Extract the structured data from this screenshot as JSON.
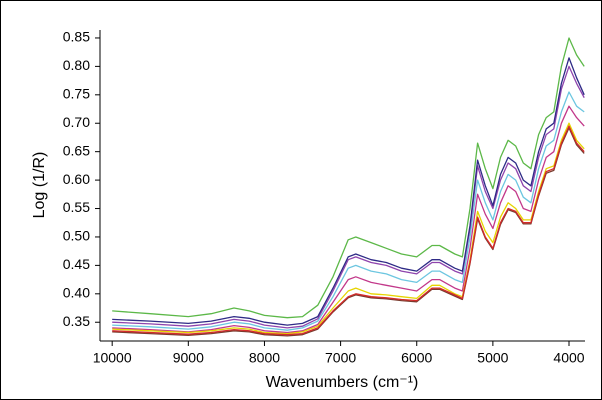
{
  "chart_data": {
    "type": "line",
    "y_label": "Log (1/R)",
    "x_label": "Wavenumbers (cm⁻¹)",
    "x": [
      10000,
      9500,
      9000,
      8700,
      8400,
      8200,
      8000,
      7700,
      7500,
      7300,
      7100,
      6900,
      6800,
      6600,
      6400,
      6200,
      6000,
      5800,
      5700,
      5500,
      5400,
      5300,
      5200,
      5100,
      5000,
      4900,
      4800,
      4700,
      4600,
      4500,
      4400,
      4300,
      4200,
      4100,
      4000,
      3900,
      3800
    ],
    "xlim": [
      10160,
      3790
    ],
    "xticks": [
      10000,
      9000,
      8000,
      7000,
      6000,
      5000,
      4000
    ],
    "ylim": [
      0.317,
      0.864
    ],
    "yticks": [
      0.35,
      {
        "value": 0.4,
        "label": "0.40"
      },
      0.45,
      {
        "value": 0.5,
        "label": "0.50"
      },
      0.55,
      {
        "value": 0.6,
        "label": "0.60"
      },
      0.65,
      {
        "value": 0.7,
        "label": "0.70"
      },
      0.75,
      {
        "value": 0.8,
        "label": "0.80"
      },
      0.85
    ],
    "grid": false,
    "series": [
      {
        "color": "#5cb848",
        "values": [
          0.37,
          0.365,
          0.36,
          0.365,
          0.375,
          0.37,
          0.362,
          0.358,
          0.36,
          0.38,
          0.43,
          0.495,
          0.5,
          0.49,
          0.48,
          0.47,
          0.465,
          0.485,
          0.485,
          0.47,
          0.465,
          0.55,
          0.665,
          0.62,
          0.585,
          0.64,
          0.67,
          0.66,
          0.63,
          0.62,
          0.68,
          0.71,
          0.72,
          0.8,
          0.85,
          0.82,
          0.8
        ]
      },
      {
        "color": "#6cc6e0",
        "values": [
          0.345,
          0.342,
          0.338,
          0.342,
          0.35,
          0.347,
          0.34,
          0.336,
          0.34,
          0.352,
          0.395,
          0.445,
          0.45,
          0.44,
          0.435,
          0.425,
          0.42,
          0.44,
          0.44,
          0.425,
          0.42,
          0.5,
          0.6,
          0.56,
          0.53,
          0.58,
          0.61,
          0.6,
          0.57,
          0.56,
          0.62,
          0.66,
          0.67,
          0.72,
          0.755,
          0.73,
          0.72
        ]
      },
      {
        "color": "#c2388a",
        "values": [
          0.34,
          0.337,
          0.333,
          0.337,
          0.344,
          0.341,
          0.335,
          0.332,
          0.335,
          0.346,
          0.385,
          0.425,
          0.43,
          0.42,
          0.415,
          0.41,
          0.405,
          0.425,
          0.425,
          0.41,
          0.405,
          0.48,
          0.575,
          0.54,
          0.515,
          0.56,
          0.59,
          0.58,
          0.55,
          0.545,
          0.6,
          0.64,
          0.65,
          0.7,
          0.73,
          0.71,
          0.695
        ]
      },
      {
        "color": "#8e44ad",
        "values": [
          0.35,
          0.347,
          0.343,
          0.347,
          0.355,
          0.352,
          0.345,
          0.34,
          0.343,
          0.356,
          0.405,
          0.46,
          0.465,
          0.455,
          0.45,
          0.44,
          0.435,
          0.455,
          0.455,
          0.44,
          0.435,
          0.515,
          0.625,
          0.58,
          0.55,
          0.6,
          0.63,
          0.62,
          0.59,
          0.58,
          0.64,
          0.68,
          0.69,
          0.76,
          0.8,
          0.77,
          0.745
        ]
      },
      {
        "color": "#2e2a86",
        "values": [
          0.355,
          0.352,
          0.348,
          0.352,
          0.36,
          0.357,
          0.35,
          0.345,
          0.348,
          0.36,
          0.41,
          0.465,
          0.47,
          0.46,
          0.455,
          0.445,
          0.44,
          0.46,
          0.46,
          0.445,
          0.44,
          0.52,
          0.635,
          0.59,
          0.555,
          0.61,
          0.64,
          0.63,
          0.6,
          0.59,
          0.65,
          0.69,
          0.7,
          0.77,
          0.815,
          0.78,
          0.75
        ]
      },
      {
        "color": "#e6d400",
        "values": [
          0.338,
          0.335,
          0.332,
          0.335,
          0.34,
          0.338,
          0.332,
          0.33,
          0.333,
          0.343,
          0.375,
          0.405,
          0.41,
          0.4,
          0.398,
          0.395,
          0.392,
          0.415,
          0.415,
          0.4,
          0.395,
          0.46,
          0.545,
          0.51,
          0.49,
          0.535,
          0.56,
          0.55,
          0.53,
          0.53,
          0.58,
          0.62,
          0.625,
          0.67,
          0.7,
          0.67,
          0.655
        ]
      },
      {
        "color": "#7a3b2e",
        "values": [
          0.333,
          0.33,
          0.327,
          0.33,
          0.335,
          0.333,
          0.328,
          0.326,
          0.328,
          0.338,
          0.368,
          0.393,
          0.398,
          0.393,
          0.391,
          0.388,
          0.386,
          0.408,
          0.408,
          0.396,
          0.39,
          0.453,
          0.532,
          0.498,
          0.478,
          0.522,
          0.548,
          0.543,
          0.523,
          0.523,
          0.572,
          0.612,
          0.617,
          0.662,
          0.692,
          0.662,
          0.647
        ]
      },
      {
        "color": "#d42a2a",
        "values": [
          0.335,
          0.332,
          0.329,
          0.332,
          0.337,
          0.335,
          0.33,
          0.328,
          0.33,
          0.34,
          0.37,
          0.395,
          0.4,
          0.395,
          0.393,
          0.39,
          0.388,
          0.41,
          0.41,
          0.398,
          0.392,
          0.455,
          0.535,
          0.5,
          0.48,
          0.525,
          0.55,
          0.545,
          0.525,
          0.525,
          0.575,
          0.615,
          0.62,
          0.665,
          0.695,
          0.665,
          0.65
        ]
      }
    ]
  }
}
